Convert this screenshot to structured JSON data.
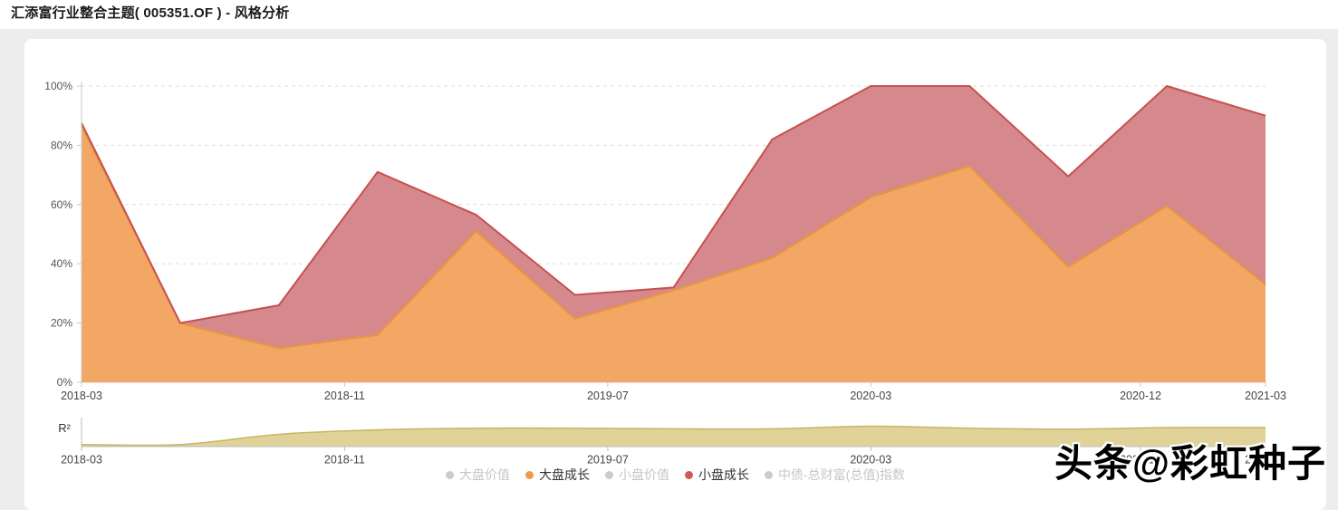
{
  "page": {
    "title": "汇添富行业整合主题( 005351.OF ) - 风格分析"
  },
  "watermark": {
    "text": "头条@彩虹种子"
  },
  "legend": {
    "items": [
      {
        "label": "大盘价值",
        "color": "#c9cbcd",
        "active": false
      },
      {
        "label": "大盘成长",
        "color": "#ee9c44",
        "active": true
      },
      {
        "label": "小盘价值",
        "color": "#c9cbcd",
        "active": false
      },
      {
        "label": "小盘成长",
        "color": "#cc5b5b",
        "active": true
      },
      {
        "label": "中债-总财富(总值)指数",
        "color": "#c9cbcd",
        "active": false
      }
    ]
  },
  "chart_data": [
    {
      "type": "area",
      "stacked": true,
      "title": "风格分析",
      "x": [
        "2018-03",
        "2018-06",
        "2018-09",
        "2018-12",
        "2019-03",
        "2019-06",
        "2019-09",
        "2019-12",
        "2020-03",
        "2020-06",
        "2020-09",
        "2020-12",
        "2021-03"
      ],
      "x_month_index": [
        0,
        3,
        6,
        9,
        12,
        15,
        18,
        21,
        24,
        27,
        30,
        33,
        36
      ],
      "series": [
        {
          "name": "大盘成长",
          "fill": "#f2a765",
          "line": "#e8943f",
          "values": [
            86.5,
            20,
            11.5,
            16,
            51,
            21.5,
            31,
            42,
            62.5,
            73,
            39,
            59.5,
            33
          ]
        },
        {
          "name": "小盘成长",
          "fill": "#d5898c",
          "line": "#c7504f",
          "values": [
            1,
            0,
            14.5,
            55,
            5.5,
            8,
            1,
            40,
            37.5,
            27,
            30.5,
            40.5,
            57
          ]
        }
      ],
      "ylim": [
        0,
        100
      ],
      "yticks": [
        {
          "value": 0,
          "label": "0%"
        },
        {
          "value": 20,
          "label": "20%"
        },
        {
          "value": 40,
          "label": "40%"
        },
        {
          "value": 60,
          "label": "60%"
        },
        {
          "value": 80,
          "label": "80%"
        },
        {
          "value": 100,
          "label": "100%"
        }
      ],
      "xticks": [
        {
          "label": "2018-03",
          "month": 0
        },
        {
          "label": "2018-11",
          "month": 8
        },
        {
          "label": "2019-07",
          "month": 16
        },
        {
          "label": "2020-03",
          "month": 24
        },
        {
          "label": "2020-12",
          "month": 32.2
        },
        {
          "label": "2021-03",
          "month": 36
        }
      ],
      "grid": "horizontal-dashed",
      "legend_position": "bottom"
    },
    {
      "type": "area",
      "name": "R²",
      "ylabel": "R²",
      "x": [
        "2018-03",
        "2018-06",
        "2018-09",
        "2018-12",
        "2019-03",
        "2019-06",
        "2019-09",
        "2019-12",
        "2020-03",
        "2020-06",
        "2020-09",
        "2020-12",
        "2021-03"
      ],
      "x_month_index": [
        0,
        3,
        6,
        9,
        12,
        15,
        18,
        21,
        24,
        27,
        30,
        33,
        36
      ],
      "values": [
        0.05,
        0.05,
        0.36,
        0.5,
        0.55,
        0.55,
        0.53,
        0.53,
        0.61,
        0.55,
        0.52,
        0.57,
        0.57
      ],
      "fill": "#e0d299",
      "line": "#c8b566",
      "ylim": [
        0,
        1
      ],
      "xticks": [
        {
          "label": "2018-03",
          "month": 0
        },
        {
          "label": "2018-11",
          "month": 8
        },
        {
          "label": "2019-07",
          "month": 16
        },
        {
          "label": "2020-03",
          "month": 24
        },
        {
          "label": "2020-12",
          "month": 32.2
        },
        {
          "label": "2021-03",
          "month": 36
        }
      ]
    }
  ]
}
